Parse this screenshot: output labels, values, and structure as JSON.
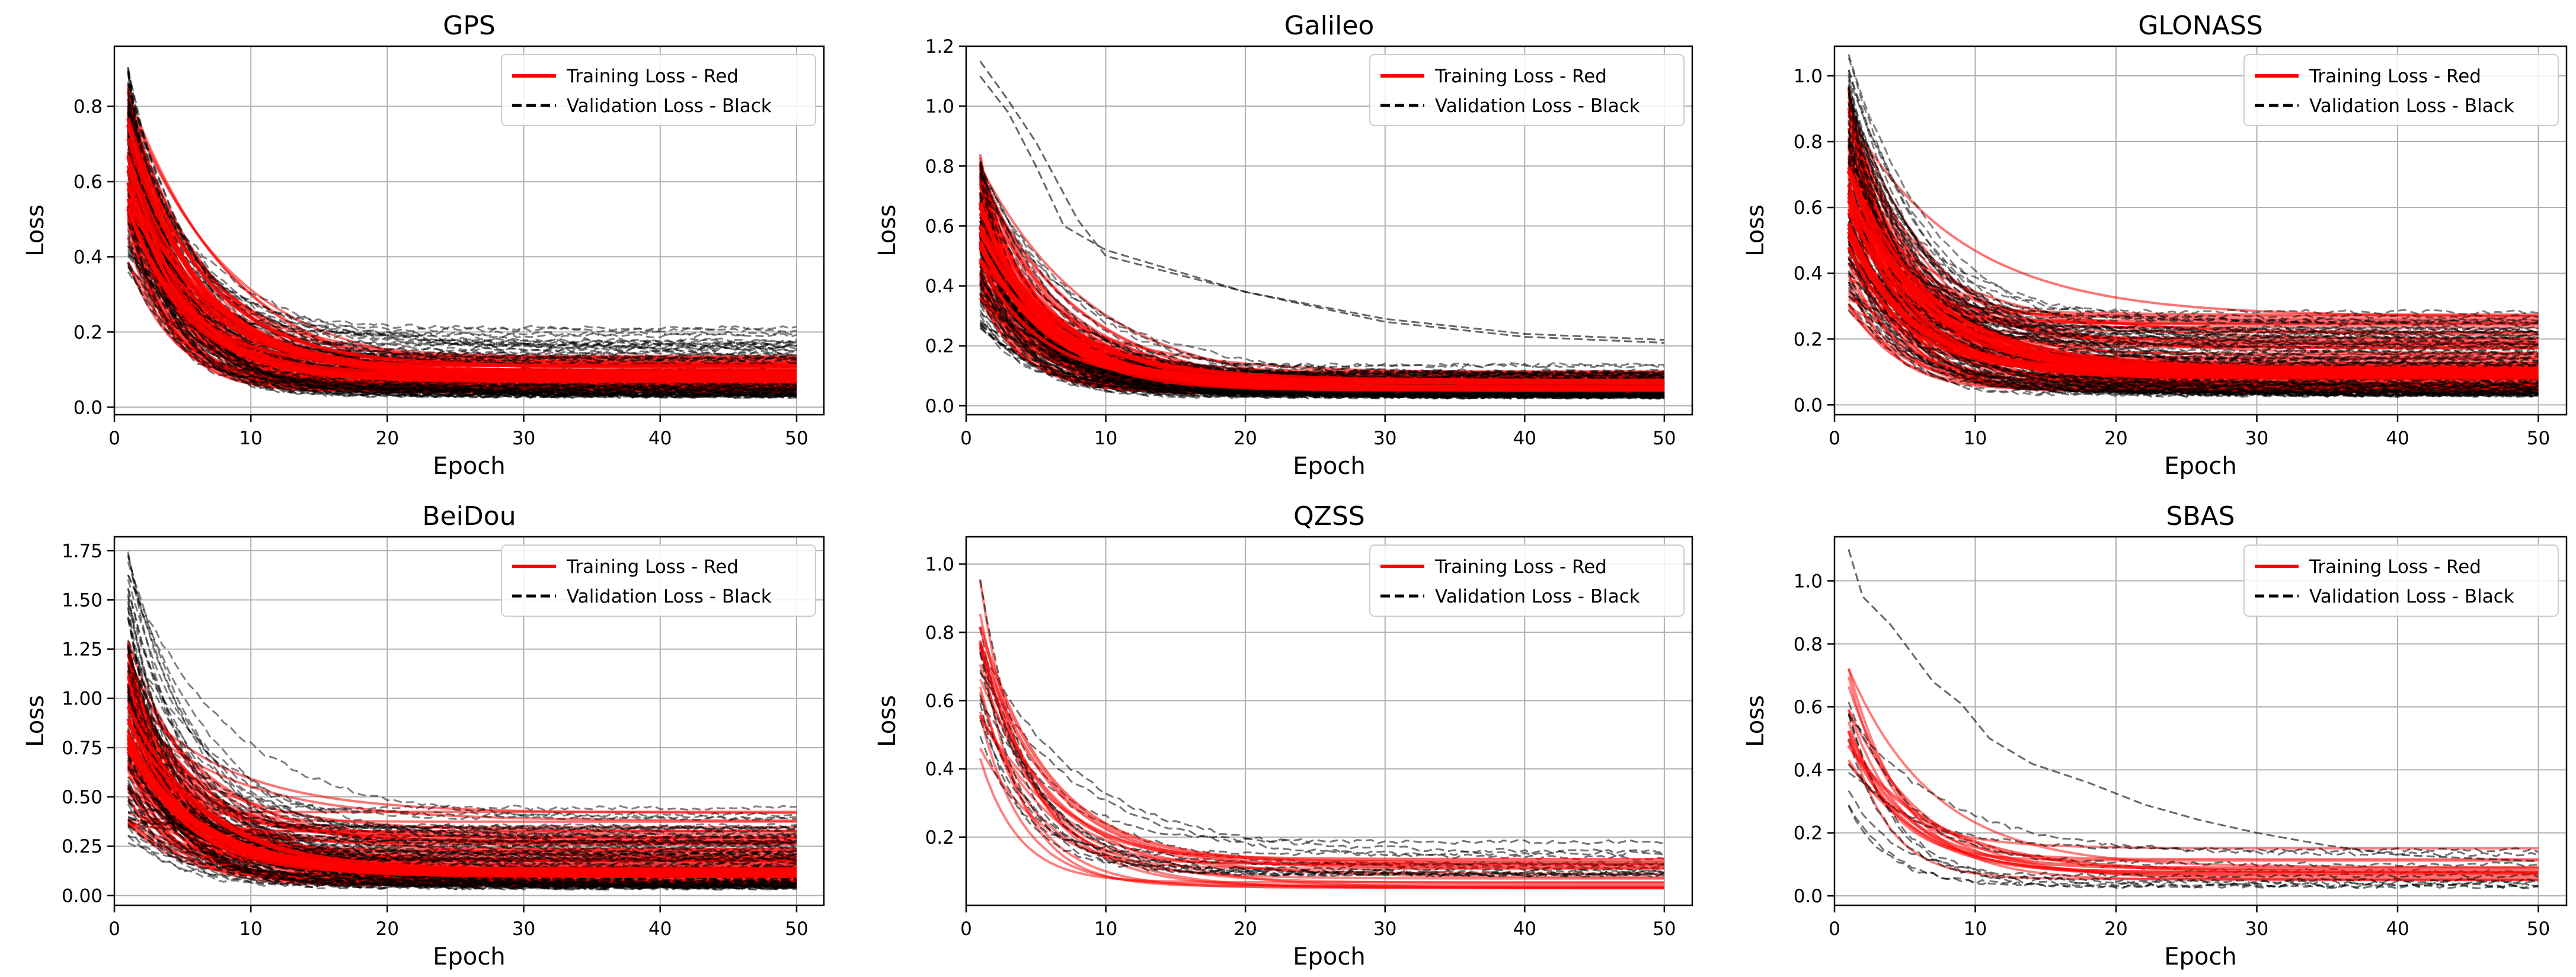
{
  "chart_data": [
    {
      "type": "line",
      "title": "GPS",
      "xlabel": "Epoch",
      "ylabel": "Loss",
      "xlim": [
        0,
        52
      ],
      "ylim": [
        -0.02,
        0.96
      ],
      "xticks": [
        0,
        10,
        20,
        30,
        40,
        50
      ],
      "yticks": [
        0.0,
        0.2,
        0.4,
        0.6,
        0.8
      ],
      "ytick_labels": [
        "0.0",
        "0.2",
        "0.4",
        "0.6",
        "0.8"
      ],
      "grid": true,
      "legend_position": "top-right",
      "x": [
        1,
        2,
        3,
        5,
        8,
        12,
        18,
        25,
        33,
        42,
        50
      ],
      "series_groups": [
        {
          "name": "Training Loss - Red",
          "color": "#ff0000",
          "style": "solid",
          "count": 90,
          "start": [
            0.38,
            0.86
          ],
          "end": [
            0.04,
            0.15
          ],
          "median": [
            0.6,
            0.09
          ]
        },
        {
          "name": "Validation Loss - Black",
          "color": "#000000",
          "style": "dashed",
          "count": 90,
          "start": [
            0.36,
            0.92
          ],
          "end": [
            0.03,
            0.23
          ],
          "median": [
            0.6,
            0.09
          ]
        }
      ]
    },
    {
      "type": "line",
      "title": "Galileo",
      "xlabel": "Epoch",
      "ylabel": "Loss",
      "xlim": [
        0,
        52
      ],
      "ylim": [
        -0.03,
        1.2
      ],
      "xticks": [
        0,
        10,
        20,
        30,
        40,
        50
      ],
      "yticks": [
        0.0,
        0.2,
        0.4,
        0.6,
        0.8,
        1.0,
        1.2
      ],
      "ytick_labels": [
        "0.0",
        "0.2",
        "0.4",
        "0.6",
        "0.8",
        "1.0",
        "1.2"
      ],
      "grid": true,
      "legend_position": "top-right",
      "x": [
        1,
        2,
        3,
        5,
        8,
        12,
        18,
        25,
        33,
        42,
        50
      ],
      "series_groups": [
        {
          "name": "Training Loss - Red",
          "color": "#ff0000",
          "style": "solid",
          "count": 90,
          "start": [
            0.3,
            0.84
          ],
          "end": [
            0.04,
            0.12
          ],
          "median": [
            0.55,
            0.07
          ]
        },
        {
          "name": "Validation Loss - Black",
          "color": "#000000",
          "style": "dashed",
          "count": 90,
          "start": [
            0.25,
            0.82
          ],
          "end": [
            0.03,
            0.14
          ],
          "median": [
            0.5,
            0.07
          ]
        }
      ],
      "outliers": [
        {
          "x": [
            1,
            3,
            5,
            8,
            10,
            20,
            30,
            40,
            50
          ],
          "y": [
            1.15,
            1.02,
            0.88,
            0.62,
            0.5,
            0.38,
            0.28,
            0.23,
            0.21
          ]
        },
        {
          "x": [
            1,
            3,
            5,
            7,
            10,
            20,
            30,
            40,
            50
          ],
          "y": [
            1.1,
            0.98,
            0.8,
            0.6,
            0.52,
            0.38,
            0.29,
            0.24,
            0.22
          ]
        }
      ]
    },
    {
      "type": "line",
      "title": "GLONASS",
      "xlabel": "Epoch",
      "ylabel": "Loss",
      "xlim": [
        0,
        52
      ],
      "ylim": [
        -0.03,
        1.09
      ],
      "xticks": [
        0,
        10,
        20,
        30,
        40,
        50
      ],
      "yticks": [
        0.0,
        0.2,
        0.4,
        0.6,
        0.8,
        1.0
      ],
      "ytick_labels": [
        "0.0",
        "0.2",
        "0.4",
        "0.6",
        "0.8",
        "1.0"
      ],
      "grid": true,
      "legend_position": "top-right",
      "x": [
        1,
        2,
        3,
        5,
        8,
        12,
        18,
        25,
        33,
        42,
        50
      ],
      "series_groups": [
        {
          "name": "Training Loss - Red",
          "color": "#ff0000",
          "style": "solid",
          "count": 90,
          "start": [
            0.28,
            0.97
          ],
          "end": [
            0.04,
            0.3
          ],
          "median": [
            0.55,
            0.1
          ]
        },
        {
          "name": "Validation Loss - Black",
          "color": "#000000",
          "style": "dashed",
          "count": 90,
          "start": [
            0.28,
            1.06
          ],
          "end": [
            0.03,
            0.33
          ],
          "median": [
            0.55,
            0.1
          ]
        }
      ]
    },
    {
      "type": "line",
      "title": "BeiDou",
      "xlabel": "Epoch",
      "ylabel": "Loss",
      "xlim": [
        0,
        52
      ],
      "ylim": [
        -0.05,
        1.82
      ],
      "xticks": [
        0,
        10,
        20,
        30,
        40,
        50
      ],
      "yticks": [
        0.0,
        0.25,
        0.5,
        0.75,
        1.0,
        1.25,
        1.5,
        1.75
      ],
      "ytick_labels": [
        "0.00",
        "0.25",
        "0.50",
        "0.75",
        "1.00",
        "1.25",
        "1.50",
        "1.75"
      ],
      "grid": true,
      "legend_position": "top-right",
      "x": [
        1,
        2,
        3,
        5,
        8,
        12,
        18,
        25,
        33,
        42,
        50
      ],
      "series_groups": [
        {
          "name": "Training Loss - Red",
          "color": "#ff0000",
          "style": "solid",
          "count": 90,
          "start": [
            0.3,
            1.3
          ],
          "end": [
            0.05,
            0.45
          ],
          "median": [
            0.8,
            0.13
          ]
        },
        {
          "name": "Validation Loss - Black",
          "color": "#000000",
          "style": "dashed",
          "count": 90,
          "start": [
            0.25,
            1.75
          ],
          "end": [
            0.04,
            0.47
          ],
          "median": [
            0.8,
            0.13
          ]
        }
      ]
    },
    {
      "type": "line",
      "title": "QZSS",
      "xlabel": "Epoch",
      "ylabel": "Loss",
      "xlim": [
        0,
        52
      ],
      "ylim": [
        0.0,
        1.08
      ],
      "xticks": [
        0,
        10,
        20,
        30,
        40,
        50
      ],
      "yticks": [
        0.2,
        0.4,
        0.6,
        0.8,
        1.0
      ],
      "ytick_labels": [
        "0.2",
        "0.4",
        "0.6",
        "0.8",
        "1.0"
      ],
      "grid": true,
      "legend_position": "top-right",
      "x": [
        1,
        2,
        3,
        5,
        8,
        12,
        18,
        25,
        33,
        42,
        50
      ],
      "series_groups": [
        {
          "name": "Training Loss - Red",
          "color": "#ff0000",
          "style": "solid",
          "count": 14,
          "start": [
            0.4,
            0.98
          ],
          "end": [
            0.05,
            0.14
          ],
          "median": [
            0.75,
            0.11
          ]
        },
        {
          "name": "Validation Loss - Black",
          "color": "#000000",
          "style": "dashed",
          "count": 14,
          "start": [
            0.45,
            1.04
          ],
          "end": [
            0.09,
            0.19
          ],
          "median": [
            0.85,
            0.13
          ]
        }
      ]
    },
    {
      "type": "line",
      "title": "SBAS",
      "xlabel": "Epoch",
      "ylabel": "Loss",
      "xlim": [
        0,
        52
      ],
      "ylim": [
        -0.03,
        1.14
      ],
      "xticks": [
        0,
        10,
        20,
        30,
        40,
        50
      ],
      "yticks": [
        0.0,
        0.2,
        0.4,
        0.6,
        0.8,
        1.0
      ],
      "ytick_labels": [
        "0.0",
        "0.2",
        "0.4",
        "0.6",
        "0.8",
        "1.0"
      ],
      "grid": true,
      "legend_position": "top-right",
      "x": [
        1,
        2,
        3,
        5,
        8,
        12,
        18,
        25,
        33,
        42,
        50
      ],
      "series_groups": [
        {
          "name": "Training Loss - Red",
          "color": "#ff0000",
          "style": "solid",
          "count": 10,
          "start": [
            0.42,
            0.74
          ],
          "end": [
            0.05,
            0.16
          ],
          "median": [
            0.55,
            0.09
          ]
        },
        {
          "name": "Validation Loss - Black",
          "color": "#000000",
          "style": "dashed",
          "count": 10,
          "start": [
            0.28,
            0.62
          ],
          "end": [
            0.03,
            0.17
          ],
          "median": [
            0.45,
            0.08
          ]
        }
      ],
      "outliers": [
        {
          "x": [
            1,
            2,
            4,
            7,
            9,
            11,
            14,
            18,
            22,
            26,
            30,
            35,
            40,
            45,
            50
          ],
          "y": [
            1.1,
            0.95,
            0.86,
            0.68,
            0.61,
            0.5,
            0.42,
            0.36,
            0.29,
            0.24,
            0.2,
            0.16,
            0.13,
            0.12,
            0.11
          ]
        }
      ]
    }
  ]
}
